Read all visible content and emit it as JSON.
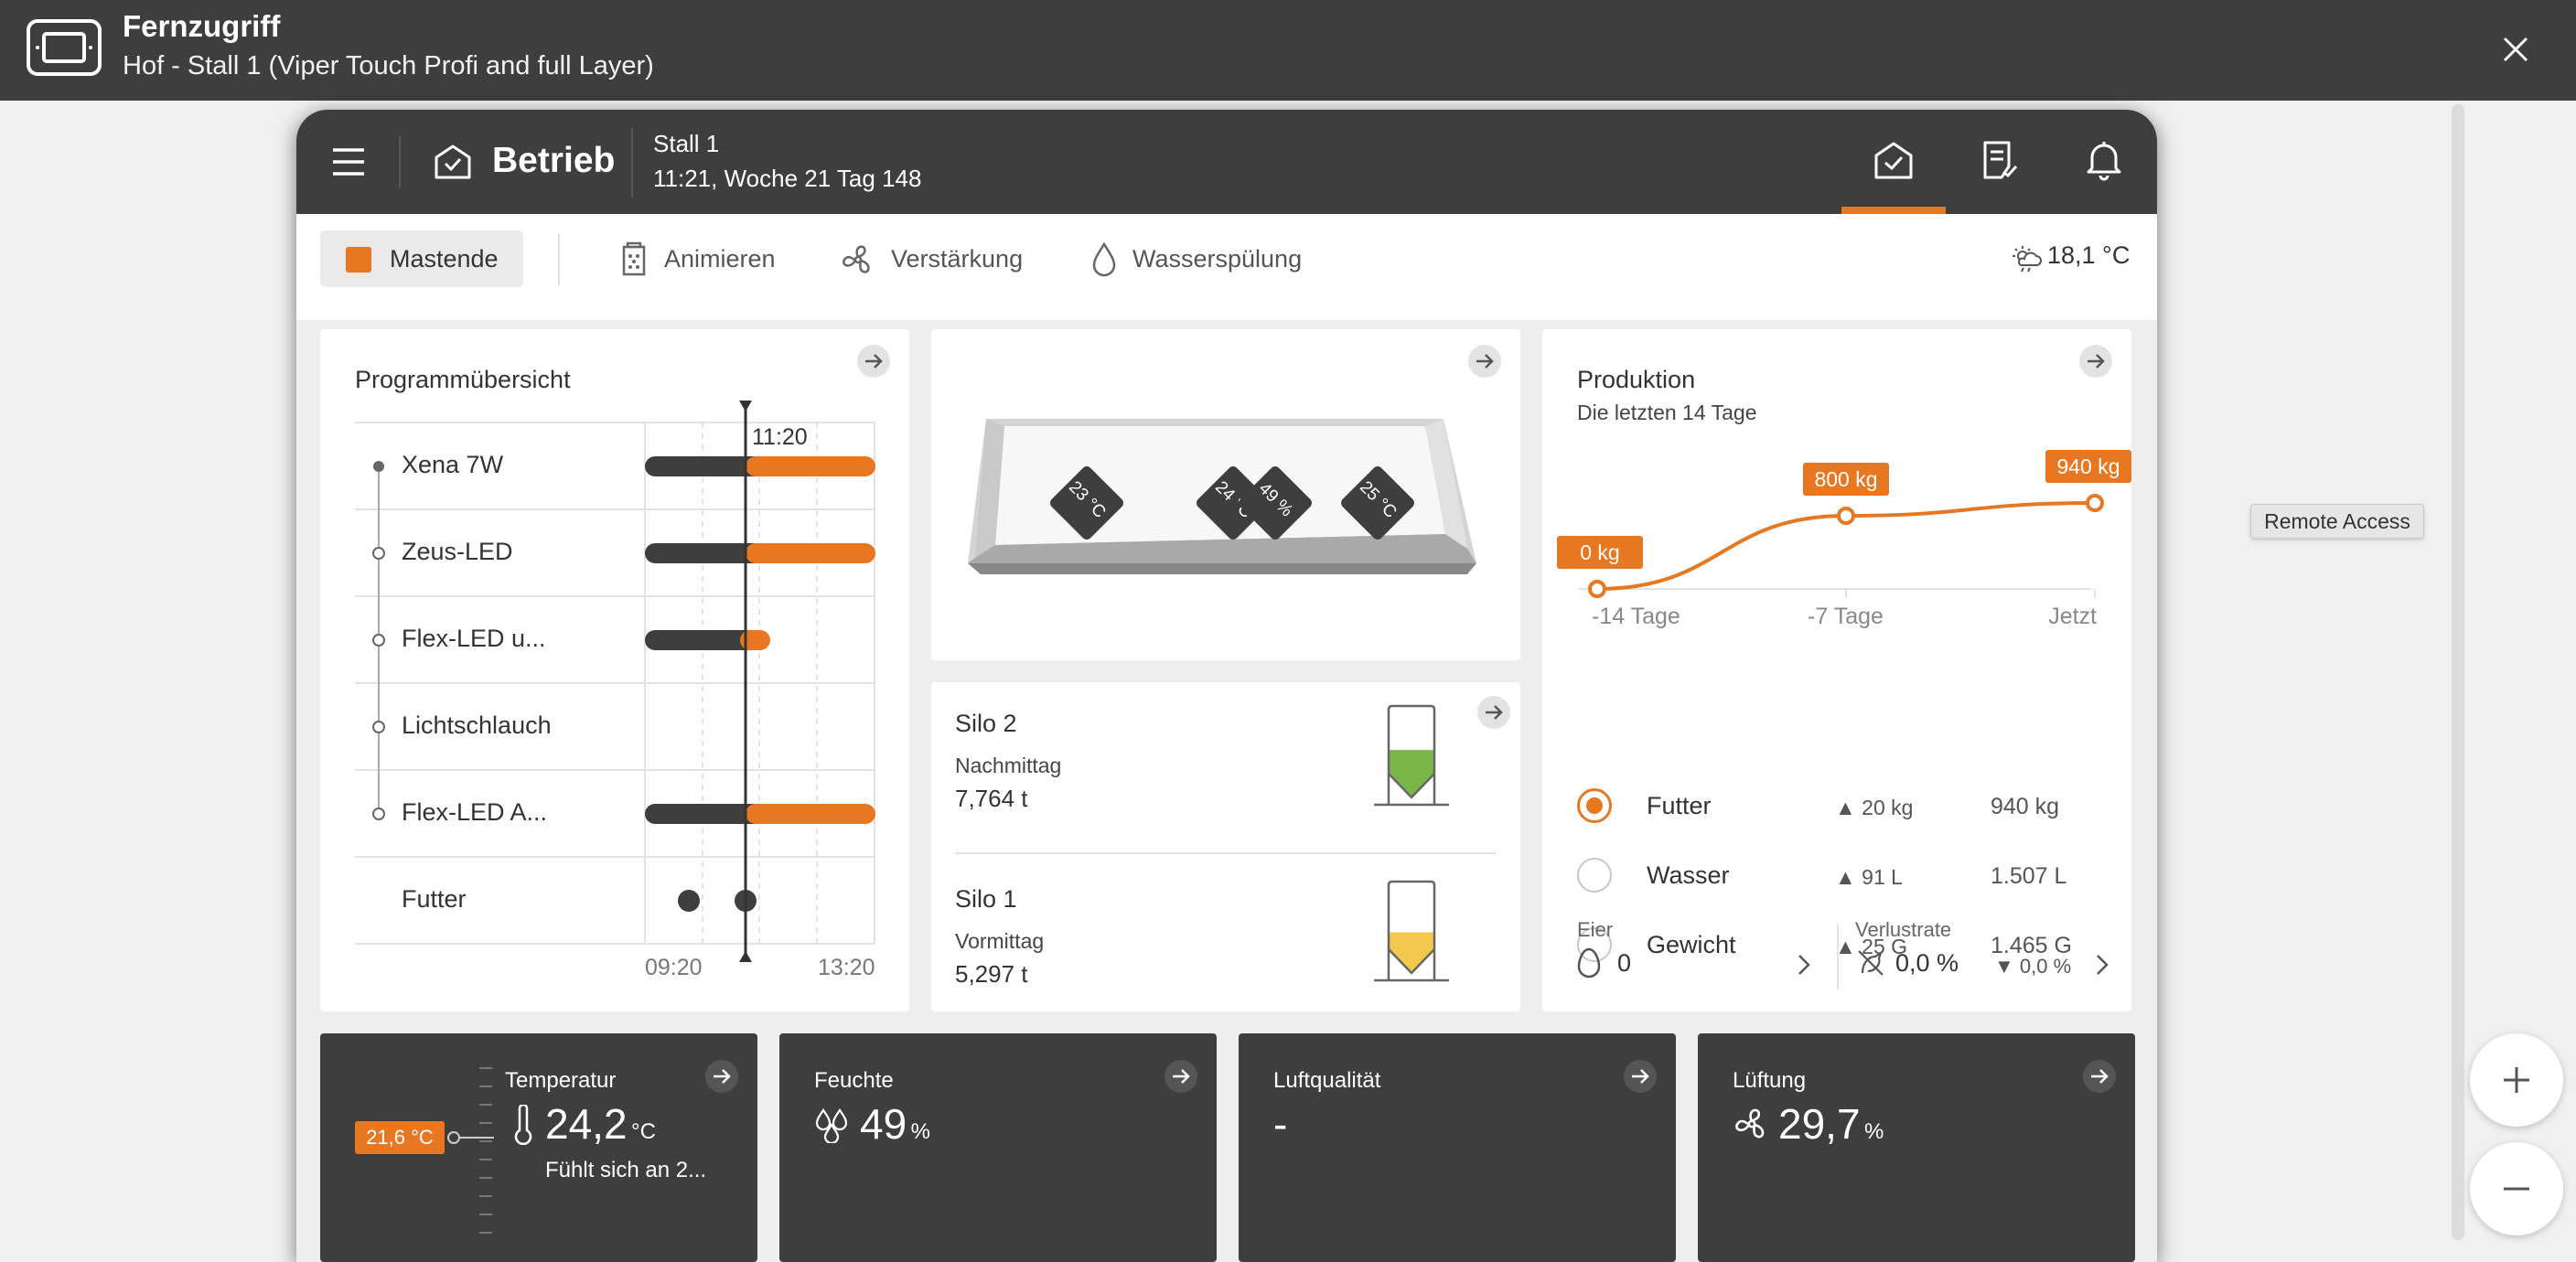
{
  "window": {
    "title": "Fernzugriff",
    "subtitle": "Hof - Stall 1 (Viper Touch Profi and full Layer)",
    "icon": "remote-screen-icon",
    "tooltip": "Remote Access"
  },
  "header": {
    "section": "Betrieb",
    "stall": "Stall 1",
    "time_info": "11:21, Woche 21 Tag 148",
    "active_tab": "home",
    "accent": "#e87722"
  },
  "toolbar": {
    "phase": "Mastende",
    "items": [
      "Animieren",
      "Verstärkung",
      "Wasserspülung"
    ],
    "weather": "18,1 °C"
  },
  "program": {
    "title": "Programmübersicht",
    "now_label": "11:20",
    "axis_start": "09:20",
    "axis_end": "13:20",
    "rows": [
      {
        "label": "Xena 7W"
      },
      {
        "label": "Zeus-LED"
      },
      {
        "label": "Flex-LED u..."
      },
      {
        "label": "Lichtschlauch"
      },
      {
        "label": "Flex-LED A..."
      },
      {
        "label": "Futter"
      }
    ]
  },
  "tray": {
    "sensors": [
      "23 °C",
      "24 °C",
      "49 %",
      "25 °C"
    ]
  },
  "silos": [
    {
      "name": "Silo 2",
      "period": "Nachmittag",
      "value": "7,764 t",
      "fill_fraction": 0.35,
      "color": "#7ab648"
    },
    {
      "name": "Silo 1",
      "period": "Vormittag",
      "value": "5,297 t",
      "fill_fraction": 0.25,
      "color": "#f2c94c"
    }
  ],
  "production": {
    "title": "Produktion",
    "subtitle": "Die letzten 14 Tage",
    "chart_data": {
      "type": "line",
      "x": [
        "-14 Tage",
        "-7 Tage",
        "Jetzt"
      ],
      "values": [
        0,
        800,
        940
      ],
      "labels": [
        "0 kg",
        "800 kg",
        "940 kg"
      ],
      "ylim": [
        0,
        1000
      ]
    },
    "rows": [
      {
        "label": "Futter",
        "delta": "20 kg",
        "total": "940 kg",
        "selected": true
      },
      {
        "label": "Wasser",
        "delta": "91 L",
        "total": "1.507 L",
        "selected": false
      },
      {
        "label": "Gewicht",
        "delta": "25 G",
        "total": "1.465 G",
        "selected": false
      }
    ],
    "eier": {
      "label": "Eier",
      "value": "0"
    },
    "verlust": {
      "label": "Verlustrate",
      "value": "0,0 %",
      "delta": "0,0 %"
    }
  },
  "tiles": {
    "temperatur": {
      "title": "Temperatur",
      "setpoint": "21,6 °C",
      "value": "24,2",
      "unit": "°C",
      "feels": "Fühlt sich an 2..."
    },
    "feuchte": {
      "title": "Feuchte",
      "value": "49",
      "unit": "%"
    },
    "luft": {
      "title": "Luftqualität",
      "value": "-"
    },
    "lueftung": {
      "title": "Lüftung",
      "value": "29,7",
      "unit": "%"
    }
  }
}
